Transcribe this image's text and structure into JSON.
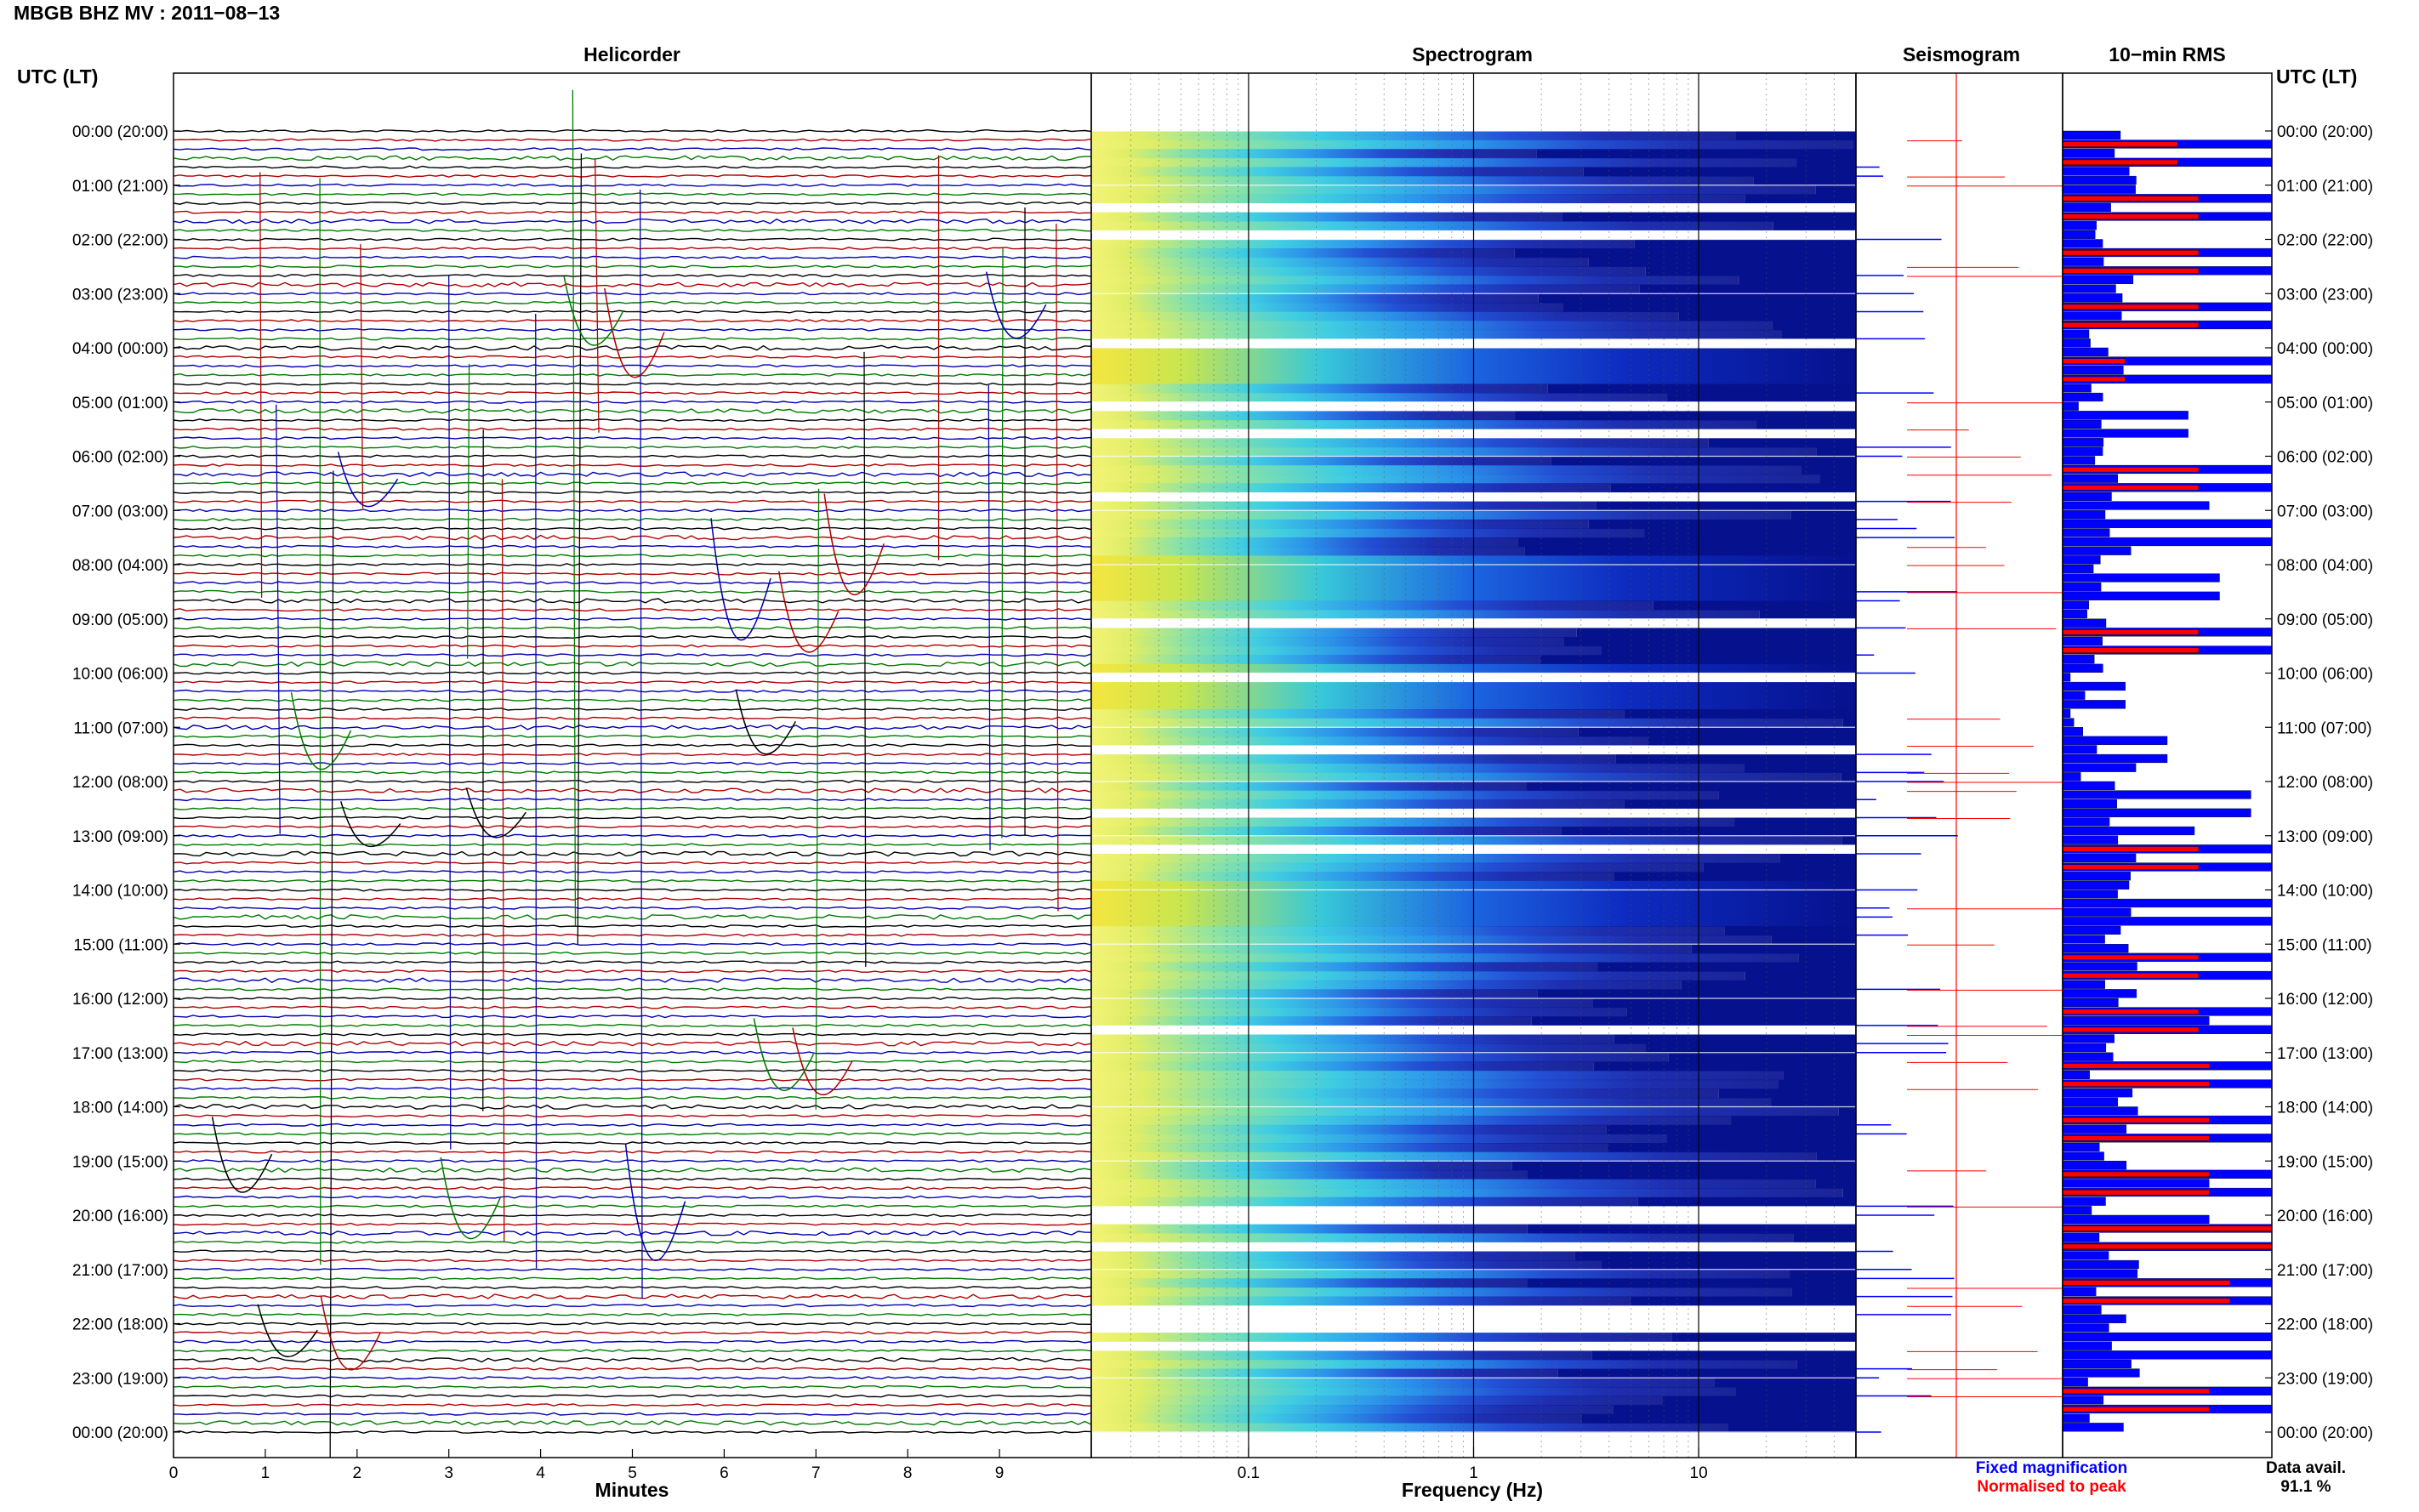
{
  "title": "MBGB BHZ MV : 2011−08−13",
  "time_label_left": "UTC (LT)",
  "time_label_right": "UTC (LT)",
  "panels": {
    "helicorder": "Helicorder",
    "spectrogram": "Spectrogram",
    "seismogram": "Seismogram",
    "rms": "10−min RMS"
  },
  "hour_labels": [
    "00:00 (20:00)",
    "01:00 (21:00)",
    "02:00 (22:00)",
    "03:00 (23:00)",
    "04:00 (00:00)",
    "05:00 (01:00)",
    "06:00 (02:00)",
    "07:00 (03:00)",
    "08:00 (04:00)",
    "09:00 (05:00)",
    "10:00 (06:00)",
    "11:00 (07:00)",
    "12:00 (08:00)",
    "13:00 (09:00)",
    "14:00 (10:00)",
    "15:00 (11:00)",
    "16:00 (12:00)",
    "17:00 (13:00)",
    "18:00 (14:00)",
    "19:00 (15:00)",
    "20:00 (16:00)",
    "21:00 (17:00)",
    "22:00 (18:00)",
    "23:00 (19:00)",
    "00:00 (20:00)"
  ],
  "legend": {
    "fixed": "Fixed magnification",
    "normalised": "Normalised to peak",
    "data_avail_label": "Data avail.",
    "data_avail_value": "91.1 %"
  },
  "colors": {
    "helicorder_traces": [
      "#000000",
      "#b00000",
      "#0000b0",
      "#007a00"
    ],
    "rms_fixed": "#0000ff",
    "rms_normalised": "#ff0000",
    "spectrogram_low": "#00008b",
    "spectrogram_high": "#ffff00"
  },
  "chart_data": [
    {
      "type": "line",
      "name": "helicorder",
      "title": "Helicorder",
      "xlabel": "Minutes",
      "xlim": [
        0,
        10
      ],
      "x_ticks": [
        "0",
        "1",
        "2",
        "3",
        "4",
        "5",
        "6",
        "7",
        "8",
        "9"
      ],
      "rows": 144,
      "row_minutes": 10
    },
    {
      "type": "heatmap",
      "name": "spectrogram",
      "title": "Spectrogram",
      "xlabel": "Frequency (Hz)",
      "x_scale": "log",
      "xlim": [
        0.02,
        50
      ],
      "x_ticks": [
        "0.1",
        "1",
        "10"
      ],
      "high_energy_hours": [
        "04:00",
        "08:00",
        "10:00",
        "14:00"
      ]
    },
    {
      "type": "bar",
      "name": "rms",
      "title": "10−min RMS",
      "series": [
        {
          "name": "Fixed magnification",
          "hourly_max_relative": [
            1.0,
            1.0,
            1.0,
            1.0,
            1.0,
            0.6,
            1.0,
            1.0,
            0.75,
            1.0,
            0.3,
            0.5,
            0.9,
            1.0,
            1.0,
            1.0,
            1.0,
            1.0,
            1.0,
            1.0,
            1.0,
            1.0,
            1.0,
            1.0
          ]
        },
        {
          "name": "Normalised to peak",
          "hourly_max_relative": [
            0.55,
            0.65,
            0.65,
            0.65,
            0.3,
            0.0,
            0.65,
            0.0,
            0.0,
            0.65,
            0.0,
            0.0,
            0.0,
            0.65,
            0.0,
            0.65,
            0.65,
            0.7,
            0.7,
            0.7,
            1.0,
            0.8,
            0.0,
            0.7
          ]
        }
      ]
    }
  ]
}
